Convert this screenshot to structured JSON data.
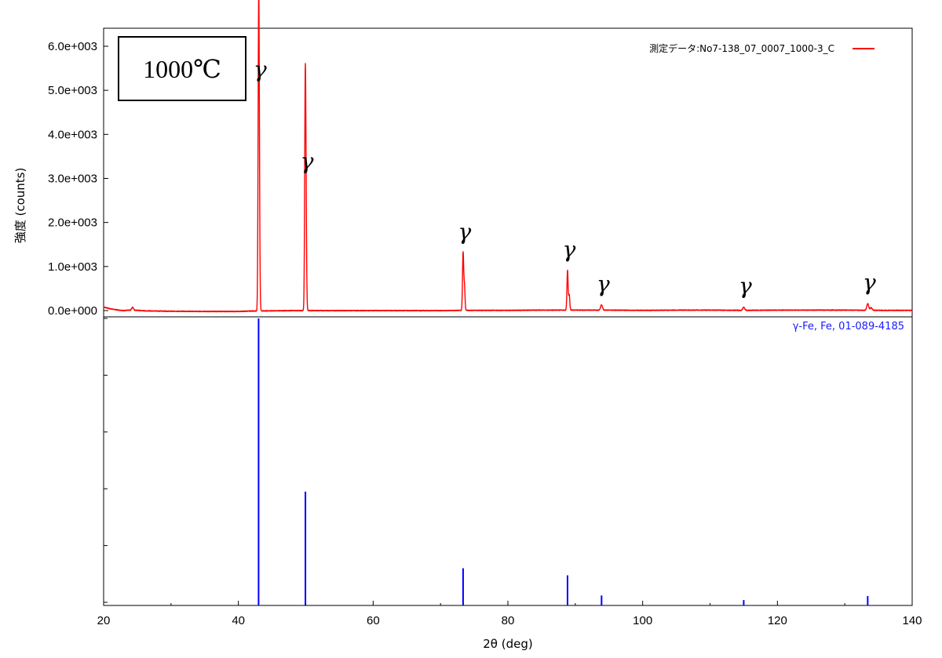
{
  "chart_data": {
    "type": "line",
    "title": "",
    "xlabel": "2θ (deg)",
    "ylabel": "強度 (counts)",
    "xlim": [
      20,
      140
    ],
    "ylim": [
      -70,
      6000
    ],
    "x_ticks": [
      20,
      40,
      60,
      80,
      100,
      120,
      140
    ],
    "y_ticks": [
      {
        "value": 0,
        "label": "0.0e+000"
      },
      {
        "value": 1000,
        "label": "1.0e+003"
      },
      {
        "value": 2000,
        "label": "2.0e+003"
      },
      {
        "value": 3000,
        "label": "3.0e+003"
      },
      {
        "value": 4000,
        "label": "4.0e+003"
      },
      {
        "value": 5000,
        "label": "5.0e+003"
      },
      {
        "value": 6000,
        "label": "6.0e+003"
      }
    ],
    "grid": false,
    "legend_position": "top-right",
    "measured": {
      "name": "測定データ:No7-138_07_0007_1000-3_C",
      "color": "#ff0000",
      "baseline": [
        [
          20,
          80
        ],
        [
          21,
          40
        ],
        [
          22,
          15
        ],
        [
          23,
          0
        ],
        [
          24,
          10
        ],
        [
          24.3,
          80
        ],
        [
          24.6,
          10
        ],
        [
          26,
          -5
        ],
        [
          30,
          -15
        ],
        [
          35,
          -20
        ],
        [
          40,
          -20
        ],
        [
          42,
          -10
        ],
        [
          45,
          -5
        ],
        [
          48,
          0
        ],
        [
          55,
          0
        ],
        [
          60,
          0
        ],
        [
          65,
          0
        ],
        [
          70,
          0
        ],
        [
          75,
          5
        ],
        [
          80,
          5
        ],
        [
          85,
          10
        ],
        [
          90,
          10
        ],
        [
          95,
          10
        ],
        [
          100,
          5
        ],
        [
          105,
          10
        ],
        [
          110,
          10
        ],
        [
          115,
          5
        ],
        [
          120,
          10
        ],
        [
          125,
          10
        ],
        [
          130,
          10
        ],
        [
          135,
          5
        ],
        [
          140,
          5
        ]
      ],
      "peaks": [
        {
          "x": 43.0,
          "y": 5100,
          "w": 0.12,
          "sub": [
            {
              "x": 43.07,
              "y": 2600
            },
            {
              "x": 43.15,
              "y": 500
            }
          ]
        },
        {
          "x": 49.95,
          "y": 2900,
          "w": 0.12,
          "sub": [
            {
              "x": 49.9,
              "y": 2350
            },
            {
              "x": 50.05,
              "y": 1450
            }
          ]
        },
        {
          "x": 73.35,
          "y": 1300,
          "w": 0.12,
          "sub": [
            {
              "x": 73.55,
              "y": 550
            }
          ]
        },
        {
          "x": 88.85,
          "y": 900,
          "w": 0.12,
          "sub": [
            {
              "x": 89.1,
              "y": 350
            }
          ]
        },
        {
          "x": 93.9,
          "y": 120,
          "w": 0.2,
          "sub": []
        },
        {
          "x": 115.0,
          "y": 70,
          "w": 0.2,
          "sub": []
        },
        {
          "x": 133.4,
          "y": 150,
          "w": 0.2,
          "sub": [
            {
              "x": 133.9,
              "y": 60
            }
          ]
        }
      ]
    },
    "reference": {
      "name": "γ-Fe, Fe, 01-089-4185",
      "color": "#0000ff",
      "scale_max": 100,
      "lines": [
        {
          "x": 43.0,
          "y": 100
        },
        {
          "x": 49.95,
          "y": 39
        },
        {
          "x": 73.35,
          "y": 12
        },
        {
          "x": 88.85,
          "y": 9.5
        },
        {
          "x": 93.9,
          "y": 2.4
        },
        {
          "x": 115.0,
          "y": 0.8
        },
        {
          "x": 133.4,
          "y": 2.2
        }
      ]
    },
    "annotations": [
      {
        "text": "γ",
        "x": 43.0
      },
      {
        "text": "γ",
        "x": 49.95
      },
      {
        "text": "γ",
        "x": 73.35
      },
      {
        "text": "γ",
        "x": 88.85
      },
      {
        "text": "γ",
        "x": 93.9
      },
      {
        "text": "γ",
        "x": 115.0
      },
      {
        "text": "γ",
        "x": 133.4
      }
    ],
    "temperature_label": "1000℃"
  }
}
